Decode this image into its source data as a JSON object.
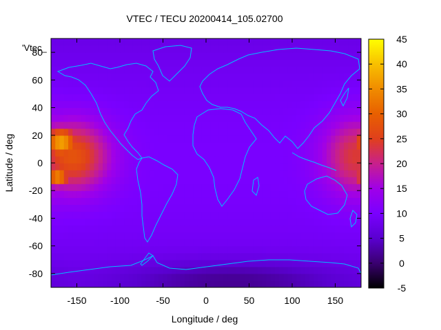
{
  "chart_data": {
    "type": "heatmap",
    "title": "VTEC / TECU 20200414_105.02700",
    "key_label": "'Vtec_",
    "xlabel": "Longitude / deg",
    "ylabel": "Latitude / deg",
    "xlim": [
      -180,
      180
    ],
    "ylim": [
      -90,
      90
    ],
    "x_ticks": [
      -150,
      -100,
      -50,
      0,
      50,
      100,
      150
    ],
    "y_ticks": [
      -80,
      -60,
      -40,
      -20,
      0,
      20,
      40,
      60,
      80
    ],
    "colorbar": {
      "range": [
        -5,
        45
      ],
      "ticks": [
        -5,
        0,
        5,
        10,
        15,
        20,
        25,
        30,
        35,
        40,
        45
      ],
      "palette": "gnuplot-rgbformulae-7-5-15",
      "stops": [
        "#000000",
        "#3a0070",
        "#5a00d0",
        "#7a00ff",
        "#a000e8",
        "#c8208c",
        "#e0401c",
        "#e86000",
        "#f08c00",
        "#f8c000",
        "#ffff00"
      ]
    },
    "background_value": 10,
    "features": [
      {
        "name": "pacific-east-maximum",
        "lon": -155,
        "lat": 5,
        "lon_halfwidth": 30,
        "lat_halfwidth": 18,
        "peak": 28
      },
      {
        "name": "pacific-east-peak-north",
        "lon": -168,
        "lat": 15,
        "lon_halfwidth": 14,
        "lat_halfwidth": 8,
        "peak": 38
      },
      {
        "name": "pacific-east-peak-south",
        "lon": -172,
        "lat": -10,
        "lon_halfwidth": 10,
        "lat_halfwidth": 5,
        "peak": 36
      },
      {
        "name": "western-pacific-maximum",
        "lon": 175,
        "lat": 5,
        "lon_halfwidth": 28,
        "lat_halfwidth": 20,
        "peak": 24
      },
      {
        "name": "southern-high-latitude-minimum",
        "lon": 30,
        "lat": -85,
        "lon_halfwidth": 90,
        "lat_halfwidth": 10,
        "peak": 4
      }
    ],
    "grid": false,
    "coastlines": true,
    "coastline_color": "#00c0ff"
  }
}
